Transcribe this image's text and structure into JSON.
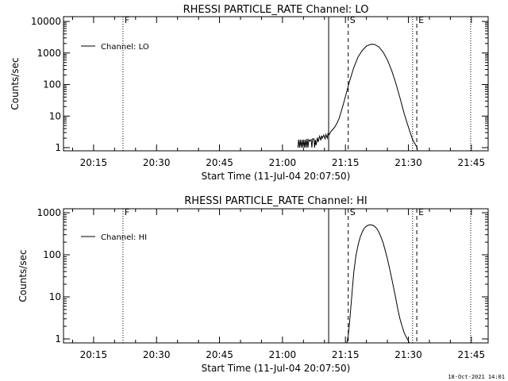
{
  "footer_timestamp": "18-Oct-2021 14:01",
  "chart_data": [
    {
      "type": "line",
      "title": "RHESSI PARTICLE_RATE Channel: LO",
      "xlabel": "Start Time (11-Jul-04 20:07:50)",
      "ylabel": "Counts/sec",
      "yscale": "log",
      "xlim": [
        "20:07:50",
        "21:49:00"
      ],
      "ylim": [
        0.8,
        10000
      ],
      "x_ticks": [
        "20:15",
        "20:30",
        "20:45",
        "21:00",
        "21:15",
        "21:30",
        "21:45"
      ],
      "y_ticks": [
        "1",
        "10",
        "100",
        "1000",
        "10000"
      ],
      "legend": "Channel: LO",
      "legend_position": "top-left",
      "markers": [
        {
          "label": "F",
          "time": "20:22:00",
          "style": "dotted"
        },
        {
          "label": "",
          "time": "21:11:00",
          "style": "solid"
        },
        {
          "label": "S",
          "time": "21:15:40",
          "style": "dashed"
        },
        {
          "label": "",
          "time": "21:31:00",
          "style": "dotted"
        },
        {
          "label": "E",
          "time": "21:32:00",
          "style": "dashed"
        },
        {
          "label": "",
          "time": "21:44:50",
          "style": "dotted"
        }
      ],
      "series": [
        {
          "name": "Channel: LO",
          "points": [
            [
              "21:03:40",
              1
            ],
            [
              "21:03:52",
              1.8
            ],
            [
              "21:04:04",
              1
            ],
            [
              "21:04:16",
              1.8
            ],
            [
              "21:04:28",
              1
            ],
            [
              "21:04:40",
              1.8
            ],
            [
              "21:04:52",
              1
            ],
            [
              "21:05:04",
              1.8
            ],
            [
              "21:05:16",
              1
            ],
            [
              "21:05:28",
              1.8
            ],
            [
              "21:05:40",
              1
            ],
            [
              "21:05:52",
              1.9
            ],
            [
              "21:06:04",
              1
            ],
            [
              "21:06:16",
              1.8
            ],
            [
              "21:06:28",
              1.6
            ],
            [
              "21:06:50",
              1.8
            ],
            [
              "21:07:00",
              1
            ],
            [
              "21:07:10",
              1.9
            ],
            [
              "21:07:30",
              1.9
            ],
            [
              "21:07:40",
              1
            ],
            [
              "21:07:50",
              1.8
            ],
            [
              "21:08:00",
              1.2
            ],
            [
              "21:08:20",
              2.1
            ],
            [
              "21:08:30",
              1.5
            ],
            [
              "21:08:50",
              2.3
            ],
            [
              "21:09:10",
              1.7
            ],
            [
              "21:09:20",
              2.4
            ],
            [
              "21:09:30",
              2
            ],
            [
              "21:09:50",
              2.5
            ],
            [
              "21:10:10",
              1.9
            ],
            [
              "21:10:20",
              2.6
            ],
            [
              "21:10:40",
              2
            ],
            [
              "21:10:50",
              2.8
            ],
            [
              "21:11:10",
              2.6
            ],
            [
              "21:11:30",
              3.2
            ],
            [
              "21:12:00",
              3.8
            ],
            [
              "21:12:30",
              4.6
            ],
            [
              "21:13:00",
              6
            ],
            [
              "21:13:30",
              8.5
            ],
            [
              "21:14:00",
              14
            ],
            [
              "21:14:30",
              24
            ],
            [
              "21:15:00",
              42
            ],
            [
              "21:16:00",
              130
            ],
            [
              "21:17:00",
              350
            ],
            [
              "21:18:00",
              750
            ],
            [
              "21:19:00",
              1200
            ],
            [
              "21:20:00",
              1650
            ],
            [
              "21:21:00",
              1880
            ],
            [
              "21:21:30",
              1900
            ],
            [
              "21:22:00",
              1850
            ],
            [
              "21:23:00",
              1550
            ],
            [
              "21:24:00",
              1050
            ],
            [
              "21:25:00",
              600
            ],
            [
              "21:26:00",
              280
            ],
            [
              "21:27:00",
              110
            ],
            [
              "21:28:00",
              38
            ],
            [
              "21:29:00",
              12
            ],
            [
              "21:30:00",
              4.5
            ],
            [
              "21:31:00",
              1.8
            ],
            [
              "21:32:00",
              1.05
            ],
            [
              "21:32:10",
              0.8
            ]
          ]
        }
      ]
    },
    {
      "type": "line",
      "title": "RHESSI PARTICLE_RATE Channel: HI",
      "xlabel": "Start Time (11-Jul-04 20:07:50)",
      "ylabel": "Counts/sec",
      "yscale": "log",
      "xlim": [
        "20:07:50",
        "21:49:00"
      ],
      "ylim": [
        0.8,
        1000
      ],
      "x_ticks": [
        "20:15",
        "20:30",
        "20:45",
        "21:00",
        "21:15",
        "21:30",
        "21:45"
      ],
      "y_ticks": [
        "1",
        "10",
        "100",
        "1000"
      ],
      "legend": "Channel: HI",
      "legend_position": "top-left",
      "markers": [
        {
          "label": "F",
          "time": "20:22:00",
          "style": "dotted"
        },
        {
          "label": "",
          "time": "21:11:00",
          "style": "solid"
        },
        {
          "label": "S",
          "time": "21:15:40",
          "style": "dashed"
        },
        {
          "label": "",
          "time": "21:31:00",
          "style": "dotted"
        },
        {
          "label": "E",
          "time": "21:32:00",
          "style": "dashed"
        },
        {
          "label": "",
          "time": "21:44:50",
          "style": "dotted"
        }
      ],
      "series": [
        {
          "name": "Channel: HI",
          "points": [
            [
              "21:15:20",
              0.8
            ],
            [
              "21:15:40",
              1.2
            ],
            [
              "21:16:00",
              2.6
            ],
            [
              "21:16:30",
              10
            ],
            [
              "21:17:00",
              40
            ],
            [
              "21:17:30",
              95
            ],
            [
              "21:18:00",
              170
            ],
            [
              "21:18:30",
              260
            ],
            [
              "21:19:00",
              350
            ],
            [
              "21:19:30",
              430
            ],
            [
              "21:20:00",
              480
            ],
            [
              "21:20:30",
              510
            ],
            [
              "21:21:00",
              520
            ],
            [
              "21:21:30",
              505
            ],
            [
              "21:22:00",
              470
            ],
            [
              "21:22:30",
              415
            ],
            [
              "21:23:00",
              340
            ],
            [
              "21:23:30",
              260
            ],
            [
              "21:24:00",
              190
            ],
            [
              "21:24:30",
              125
            ],
            [
              "21:25:00",
              80
            ],
            [
              "21:25:30",
              48
            ],
            [
              "21:26:00",
              28
            ],
            [
              "21:26:30",
              16
            ],
            [
              "21:27:00",
              9
            ],
            [
              "21:27:30",
              5
            ],
            [
              "21:28:00",
              3
            ],
            [
              "21:28:30",
              2
            ],
            [
              "21:29:00",
              1.4
            ],
            [
              "21:29:30",
              1.1
            ],
            [
              "21:30:00",
              0.9
            ],
            [
              "21:30:10",
              0.8
            ]
          ]
        }
      ]
    }
  ]
}
